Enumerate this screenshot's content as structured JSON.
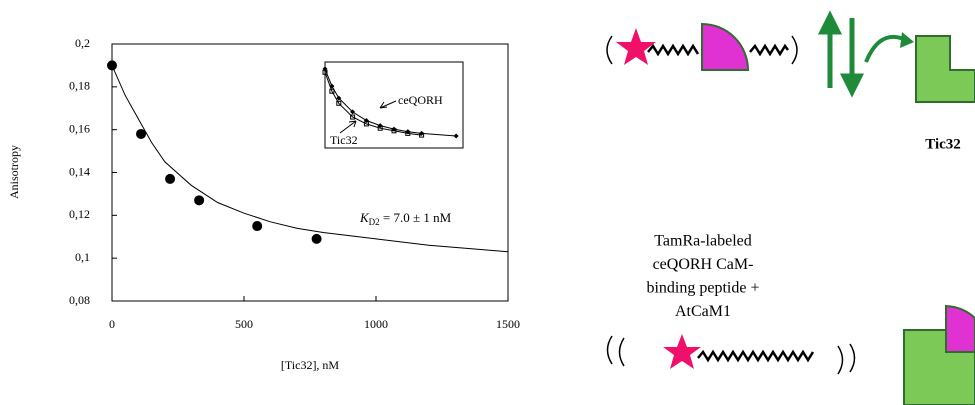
{
  "chart_data": [
    {
      "type": "scatter",
      "y_label": "Anisotropy",
      "x_label": "[Tic32], nM",
      "xlim": [
        0,
        1500
      ],
      "xticks": [
        0,
        500,
        1000,
        1500
      ],
      "ylim": [
        0.08,
        0.2
      ],
      "yticks": [
        {
          "value": 0.08,
          "label": "0,08"
        },
        {
          "value": 0.1,
          "label": "0,1"
        },
        {
          "value": 0.12,
          "label": "0,12"
        },
        {
          "value": 0.14,
          "label": "0,14"
        },
        {
          "value": 0.16,
          "label": "0,16"
        },
        {
          "value": 0.18,
          "label": "0,18"
        },
        {
          "value": 0.2,
          "label": "0,2"
        }
      ],
      "annotation": {
        "symbol": "K",
        "subscript": "D2",
        "text": " = 7.0 ± 1 nM"
      },
      "series": [
        {
          "style": "markers",
          "color": "#000000",
          "x": [
            0,
            110,
            220,
            330,
            550,
            775
          ],
          "values": [
            0.19,
            0.158,
            0.137,
            0.127,
            0.115,
            0.109
          ]
        },
        {
          "style": "line",
          "color": "#000000",
          "x": [
            0,
            50,
            100,
            150,
            200,
            300,
            400,
            500,
            600,
            700,
            800,
            1000,
            1200,
            1500
          ],
          "values": [
            0.19,
            0.176,
            0.165,
            0.154,
            0.145,
            0.134,
            0.126,
            0.121,
            0.117,
            0.114,
            0.112,
            0.109,
            0.106,
            0.103
          ]
        }
      ]
    },
    {
      "type": "line",
      "xlim": [
        0,
        10
      ],
      "ylim": [
        0,
        1
      ],
      "series": [
        {
          "name": "ceQORH",
          "marker": "diamond",
          "color": "#000000",
          "x": [
            0,
            0.5,
            1,
            2,
            3,
            4,
            5,
            6,
            7,
            9.5
          ],
          "values": [
            0.92,
            0.72,
            0.58,
            0.42,
            0.32,
            0.26,
            0.22,
            0.19,
            0.17,
            0.14
          ]
        },
        {
          "name": "Tic32",
          "marker": "square",
          "color": "#000000",
          "x": [
            0,
            0.5,
            1,
            2,
            3,
            4,
            5,
            6,
            7
          ],
          "values": [
            0.88,
            0.66,
            0.52,
            0.36,
            0.28,
            0.23,
            0.2,
            0.17,
            0.15
          ]
        }
      ]
    }
  ],
  "diagram": {
    "caption": [
      "TamRa-labeled",
      "ceQORH CaM-",
      "binding peptide +",
      "AtCaM1"
    ],
    "protein_label": "Tic32"
  }
}
